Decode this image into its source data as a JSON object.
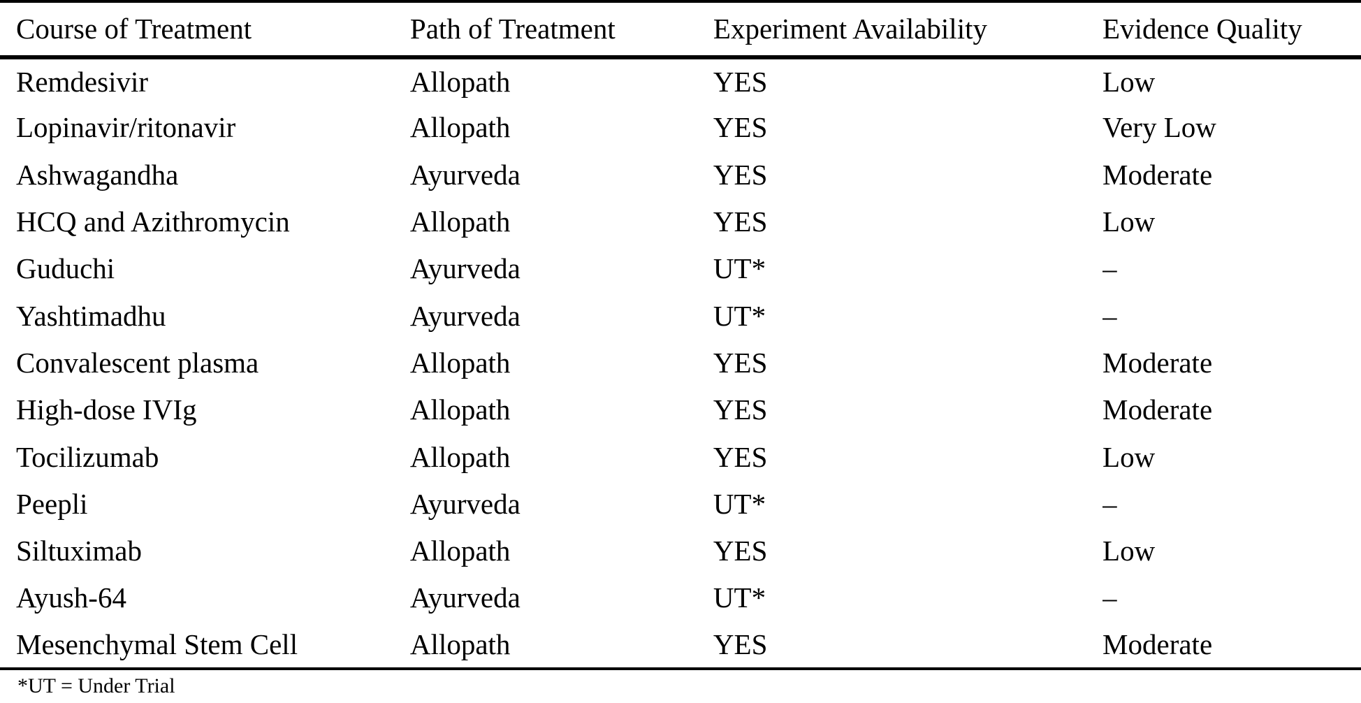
{
  "table": {
    "columns": [
      "Course of Treatment",
      "Path of Treatment",
      "Experiment Availability",
      "Evidence Quality"
    ],
    "rows": [
      [
        "Remdesivir",
        "Allopath",
        "YES",
        "Low"
      ],
      [
        "Lopinavir/ritonavir",
        "Allopath",
        "YES",
        "Very Low"
      ],
      [
        "Ashwagandha",
        "Ayurveda",
        "YES",
        "Moderate"
      ],
      [
        "HCQ and Azithromycin",
        "Allopath",
        "YES",
        "Low"
      ],
      [
        "Guduchi",
        "Ayurveda",
        "UT*",
        "–"
      ],
      [
        "Yashtimadhu",
        "Ayurveda",
        "UT*",
        "–"
      ],
      [
        "Convalescent plasma",
        "Allopath",
        "YES",
        "Moderate"
      ],
      [
        "High-dose IVIg",
        "Allopath",
        "YES",
        "Moderate"
      ],
      [
        "Tocilizumab",
        "Allopath",
        "YES",
        "Low"
      ],
      [
        "Peepli",
        "Ayurveda",
        "UT*",
        "–"
      ],
      [
        "Siltuximab",
        "Allopath",
        "YES",
        "Low"
      ],
      [
        "Ayush-64",
        "Ayurveda",
        "UT*",
        "–"
      ],
      [
        "Mesenchymal Stem Cell",
        "Allopath",
        "YES",
        "Moderate"
      ]
    ],
    "footnote": "*UT = Under Trial"
  },
  "colors": {
    "text": "#000000",
    "background": "#ffffff",
    "rule": "#000000"
  }
}
